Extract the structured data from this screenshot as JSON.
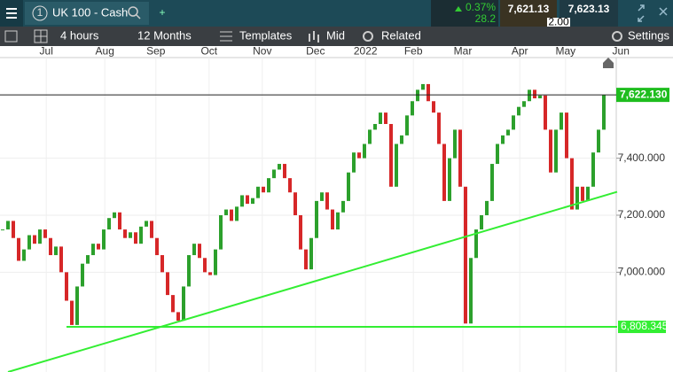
{
  "header": {
    "tab_number": "1",
    "instrument": "UK 100 - Cash",
    "change_pct": "0.37%",
    "change_pts": "28.2",
    "sell": "7,621.13",
    "buy": "7,623.13",
    "spread": "2.00"
  },
  "toolbar": {
    "interval": "4 hours",
    "range": "12 Months",
    "templates": "Templates",
    "price_type": "Mid",
    "related": "Related",
    "settings": "Settings"
  },
  "chart_data": {
    "type": "candlestick",
    "values": [
      7150,
      7180,
      7120,
      7040,
      7080,
      7130,
      7100,
      7150,
      7120,
      7060,
      7090,
      7000,
      6900,
      6815,
      6950,
      7030,
      7060,
      7100,
      7080,
      7150,
      7190,
      7210,
      7150,
      7120,
      7140,
      7100,
      7160,
      7180,
      7120,
      7060,
      7000,
      6920,
      6860,
      6830,
      6950,
      7060,
      7100,
      7050,
      7000,
      6990,
      7080,
      7200,
      7220,
      7180,
      7230,
      7270,
      7240,
      7260,
      7300,
      7280,
      7330,
      7360,
      7380,
      7330,
      7280,
      7200,
      7080,
      7010,
      7120,
      7250,
      7280,
      7220,
      7150,
      7210,
      7250,
      7350,
      7420,
      7400,
      7450,
      7500,
      7520,
      7560,
      7520,
      7300,
      7450,
      7480,
      7550,
      7600,
      7640,
      7660,
      7600,
      7560,
      7450,
      7250,
      7400,
      7500,
      7300,
      6820,
      7050,
      7150,
      7200,
      7250,
      7380,
      7450,
      7480,
      7500,
      7550,
      7580,
      7600,
      7640,
      7610,
      7620,
      7500,
      7350,
      7500,
      7560,
      7400,
      7220,
      7300,
      7250,
      7300,
      7420,
      7500,
      7622.13
    ],
    "up_color": "#2ca02c",
    "down_color": "#d62728",
    "xlim": [
      0,
      126.5
    ],
    "xticks": [
      {
        "value": 8.7,
        "label": "Jul"
      },
      {
        "value": 19.7,
        "label": "Aug"
      },
      {
        "value": 29.3,
        "label": "Sep"
      },
      {
        "value": 39.3,
        "label": "Oct"
      },
      {
        "value": 49.3,
        "label": "Nov"
      },
      {
        "value": 59.3,
        "label": "Dec"
      },
      {
        "value": 68.7,
        "label": "2022"
      },
      {
        "value": 77.7,
        "label": "Feb"
      },
      {
        "value": 87,
        "label": "Mar"
      },
      {
        "value": 97.7,
        "label": "Apr"
      },
      {
        "value": 106.3,
        "label": "May"
      },
      {
        "value": 116.7,
        "label": "Jun"
      }
    ],
    "ylim": [
      6650,
      7753
    ],
    "yticks": [
      {
        "value": 7000,
        "label": "7,000.000"
      },
      {
        "value": 7200,
        "label": "7,200.000"
      },
      {
        "value": 7400,
        "label": "7,400.000"
      }
    ],
    "grid": true,
    "price_line": {
      "value": 7622.13,
      "label": "7,622.130"
    },
    "hline": {
      "value": 6808.345,
      "label": "6,808.345",
      "x": [
        12.5,
        116
      ]
    },
    "trendline": {
      "x": [
        1.5,
        116
      ],
      "y": [
        6650,
        7282
      ],
      "color": "#33ee33"
    }
  }
}
